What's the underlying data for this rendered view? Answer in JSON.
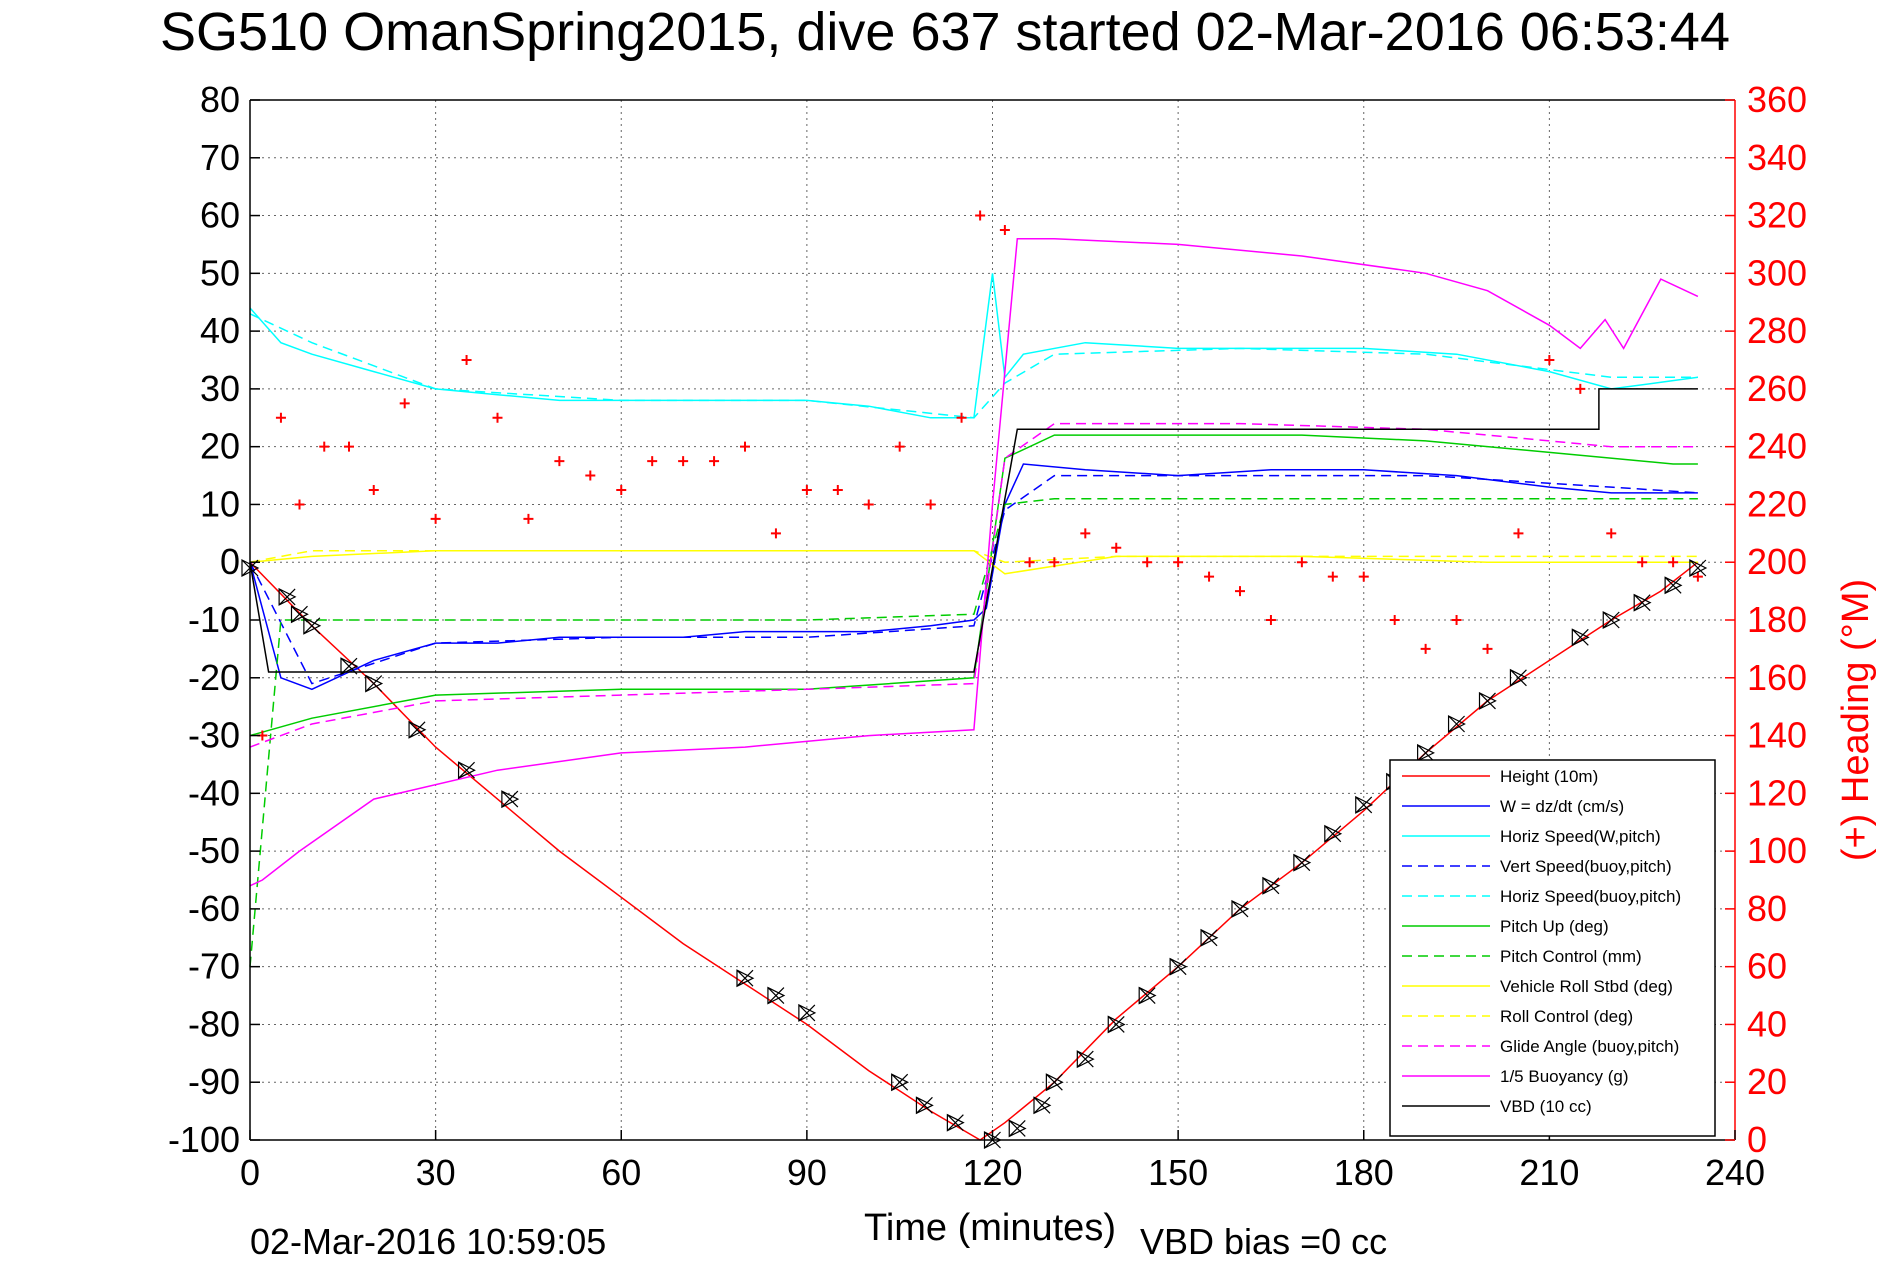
{
  "chart_data": {
    "type": "line",
    "title": "SG510 OmanSpring2015, dive 637 started 02-Mar-2016 06:53:44",
    "xlabel": "Time (minutes)",
    "ylabel_right": "(+) Heading (°M)",
    "footer_left": "02-Mar-2016 10:59:05",
    "footer_right": "VBD bias =0 cc",
    "xlim": [
      0,
      240
    ],
    "ylim": [
      -100,
      80
    ],
    "ylim_right": [
      0,
      360
    ],
    "x_ticks": [
      "0",
      "30",
      "60",
      "90",
      "120",
      "150",
      "180",
      "210",
      "240"
    ],
    "y_ticks": [
      "80",
      "70",
      "60",
      "50",
      "40",
      "30",
      "20",
      "10",
      "0",
      "-10",
      "-20",
      "-30",
      "-40",
      "-50",
      "-60",
      "-70",
      "-80",
      "-90",
      "-100"
    ],
    "y_right_ticks": [
      "360",
      "340",
      "320",
      "300",
      "280",
      "260",
      "240",
      "220",
      "200",
      "180",
      "160",
      "140",
      "120",
      "100",
      "80",
      "60",
      "40",
      "20",
      "0"
    ],
    "grid": true,
    "legend_position": "bottom-right",
    "colors": {
      "left_axis": "#000000",
      "right_axis": "#ff0000"
    },
    "series": [
      {
        "name": "Height (10m)",
        "color": "#ff0000",
        "style": "solid",
        "x": [
          0,
          10,
          20,
          30,
          40,
          50,
          60,
          70,
          80,
          90,
          100,
          110,
          118,
          122,
          130,
          140,
          150,
          160,
          170,
          180,
          190,
          200,
          210,
          220,
          228,
          234
        ],
        "y": [
          0,
          -11,
          -21,
          -32,
          -41,
          -50,
          -58,
          -66,
          -73,
          -80,
          -88,
          -95,
          -100,
          -97,
          -90,
          -79,
          -70,
          -60,
          -52,
          -43,
          -33,
          -24,
          -17,
          -10,
          -5,
          0
        ]
      },
      {
        "name": "W = dz/dt (cm/s)",
        "color": "#0000ff",
        "style": "solid",
        "x": [
          0,
          5,
          10,
          20,
          30,
          40,
          50,
          60,
          70,
          80,
          90,
          100,
          110,
          117,
          119,
          122,
          125,
          135,
          150,
          165,
          180,
          195,
          210,
          220,
          234
        ],
        "y": [
          0,
          -20,
          -22,
          -17,
          -14,
          -14,
          -13,
          -13,
          -13,
          -12,
          -12,
          -12,
          -11,
          -10,
          -8,
          10,
          17,
          16,
          15,
          16,
          16,
          15,
          13,
          12,
          12
        ]
      },
      {
        "name": "Horiz Speed(W,pitch)",
        "color": "#00ffff",
        "style": "solid",
        "x": [
          0,
          5,
          10,
          20,
          30,
          40,
          50,
          60,
          70,
          80,
          90,
          100,
          110,
          117,
          120,
          122,
          125,
          135,
          150,
          165,
          180,
          195,
          210,
          220,
          234
        ],
        "y": [
          44,
          38,
          36,
          33,
          30,
          29,
          28,
          28,
          28,
          28,
          28,
          27,
          25,
          25,
          50,
          32,
          36,
          38,
          37,
          37,
          37,
          36,
          33,
          30,
          32
        ]
      },
      {
        "name": "Vert Speed(buoy,pitch)",
        "color": "#0000ff",
        "style": "dashed",
        "x": [
          0,
          10,
          30,
          60,
          90,
          117,
          122,
          130,
          160,
          190,
          220,
          234
        ],
        "y": [
          0,
          -21,
          -14,
          -13,
          -13,
          -11,
          9,
          15,
          15,
          15,
          13,
          12
        ]
      },
      {
        "name": "Horiz Speed(buoy,pitch)",
        "color": "#00ffff",
        "style": "dashed",
        "x": [
          0,
          10,
          30,
          60,
          90,
          117,
          122,
          130,
          160,
          190,
          220,
          234
        ],
        "y": [
          43,
          38,
          30,
          28,
          28,
          25,
          31,
          36,
          37,
          36,
          32,
          32
        ]
      },
      {
        "name": "Pitch Up (deg)",
        "color": "#00cc00",
        "style": "solid",
        "x": [
          0,
          10,
          30,
          60,
          90,
          117,
          122,
          130,
          150,
          170,
          190,
          210,
          230,
          234
        ],
        "y": [
          -30,
          -27,
          -23,
          -22,
          -22,
          -20,
          18,
          22,
          22,
          22,
          21,
          19,
          17,
          17
        ]
      },
      {
        "name": "Pitch Control (mm)",
        "color": "#00cc00",
        "style": "dashed",
        "x": [
          0,
          5,
          30,
          60,
          90,
          117,
          122,
          130,
          160,
          190,
          220,
          234
        ],
        "y": [
          -70,
          -10,
          -10,
          -10,
          -10,
          -9,
          10,
          11,
          11,
          11,
          11,
          11
        ]
      },
      {
        "name": "Vehicle Roll Stbd (deg)",
        "color": "#ffff00",
        "style": "solid",
        "x": [
          0,
          10,
          30,
          60,
          90,
          117,
          122,
          140,
          170,
          200,
          234
        ],
        "y": [
          0,
          1,
          2,
          2,
          2,
          2,
          -2,
          1,
          1,
          0,
          0
        ]
      },
      {
        "name": "Roll Control (deg)",
        "color": "#ffff00",
        "style": "dashed",
        "x": [
          0,
          10,
          30,
          60,
          90,
          117,
          122,
          140,
          170,
          200,
          234
        ],
        "y": [
          0,
          2,
          2,
          2,
          2,
          2,
          0,
          1,
          1,
          1,
          1
        ]
      },
      {
        "name": "Glide Angle (buoy,pitch)",
        "color": "#ff00ff",
        "style": "dashed",
        "x": [
          0,
          10,
          30,
          60,
          90,
          117,
          122,
          130,
          160,
          190,
          220,
          234
        ],
        "y": [
          -32,
          -28,
          -24,
          -23,
          -22,
          -21,
          18,
          24,
          24,
          23,
          20,
          20
        ]
      },
      {
        "name": "1/5 Buoyancy (g)",
        "color": "#ff00ff",
        "style": "solid",
        "x": [
          0,
          2,
          8,
          20,
          40,
          60,
          80,
          100,
          117,
          120,
          124,
          130,
          150,
          170,
          190,
          200,
          210,
          215,
          219,
          222,
          228,
          234
        ],
        "y": [
          -56,
          -55,
          -50,
          -41,
          -36,
          -33,
          -32,
          -30,
          -29,
          10,
          56,
          56,
          55,
          53,
          50,
          47,
          41,
          37,
          42,
          37,
          49,
          46
        ]
      },
      {
        "name": "VBD (10 cc)",
        "color": "#000000",
        "style": "solid",
        "x": [
          0,
          3,
          3,
          117,
          124,
          124,
          218,
          218,
          234
        ],
        "y": [
          0,
          -19,
          -19,
          -19,
          23,
          23,
          23,
          30,
          30
        ]
      },
      {
        "name": "Heading (°M)",
        "color": "#ff0000",
        "style": "markers-plus",
        "axis": "right",
        "x": [
          2,
          5,
          8,
          12,
          16,
          20,
          25,
          30,
          35,
          40,
          45,
          50,
          55,
          60,
          65,
          70,
          75,
          80,
          85,
          90,
          95,
          100,
          105,
          110,
          115,
          118,
          122,
          126,
          130,
          135,
          140,
          145,
          150,
          155,
          160,
          165,
          170,
          175,
          180,
          185,
          190,
          195,
          200,
          205,
          210,
          215,
          220,
          225,
          230,
          234
        ],
        "y": [
          140,
          250,
          220,
          240,
          240,
          225,
          255,
          215,
          270,
          250,
          215,
          235,
          230,
          225,
          235,
          235,
          235,
          240,
          210,
          225,
          225,
          220,
          240,
          220,
          250,
          320,
          315,
          200,
          200,
          210,
          205,
          200,
          200,
          195,
          190,
          180,
          200,
          195,
          195,
          180,
          170,
          180,
          170,
          210,
          270,
          260,
          210,
          200,
          200,
          195
        ]
      }
    ],
    "markers": {
      "name": "Height markers",
      "shape": "triangle-x",
      "color": "#000000",
      "x": [
        0,
        6,
        8,
        10,
        16,
        20,
        27,
        35,
        42,
        80,
        85,
        90,
        105,
        109,
        114,
        120,
        124,
        128,
        130,
        135,
        140,
        145,
        150,
        155,
        160,
        165,
        170,
        175,
        180,
        185,
        190,
        195,
        200,
        205,
        215,
        220,
        225,
        230,
        234
      ],
      "y": [
        -1,
        -6,
        -9,
        -11,
        -18,
        -21,
        -29,
        -36,
        -41,
        -72,
        -75,
        -78,
        -90,
        -94,
        -97,
        -100,
        -98,
        -94,
        -90,
        -86,
        -80,
        -75,
        -70,
        -65,
        -60,
        -56,
        -52,
        -47,
        -42,
        -38,
        -33,
        -28,
        -24,
        -20,
        -13,
        -10,
        -7,
        -4,
        -1
      ]
    }
  }
}
